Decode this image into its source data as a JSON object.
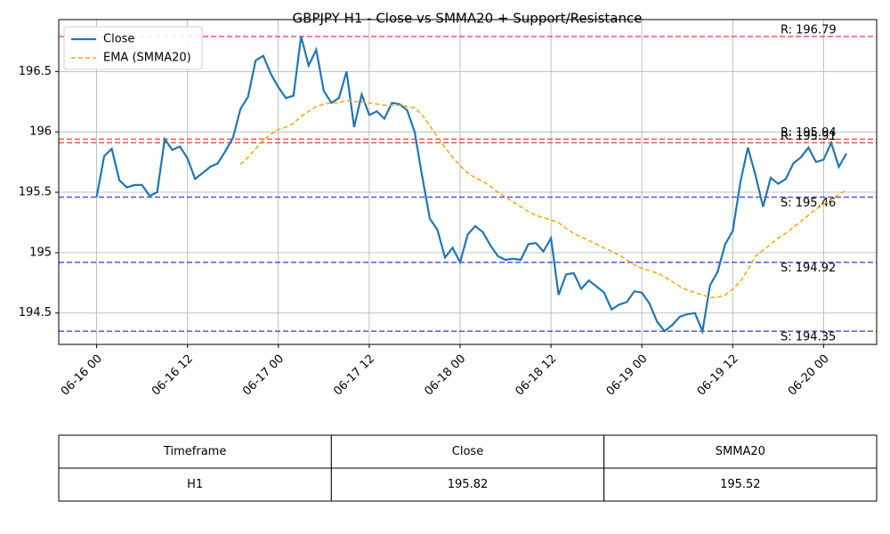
{
  "chart_data": {
    "type": "line",
    "title": "GBPJPY H1 - Close vs SMMA20 + Support/Resistance",
    "x": [
      "06-16 00",
      "06-16 01",
      "06-16 02",
      "06-16 03",
      "06-16 04",
      "06-16 05",
      "06-16 06",
      "06-16 07",
      "06-16 08",
      "06-16 09",
      "06-16 10",
      "06-16 11",
      "06-16 12",
      "06-16 13",
      "06-16 14",
      "06-16 15",
      "06-16 16",
      "06-16 17",
      "06-16 18",
      "06-16 19",
      "06-16 20",
      "06-16 21",
      "06-16 22",
      "06-16 23",
      "06-17 00",
      "06-17 01",
      "06-17 02",
      "06-17 03",
      "06-17 04",
      "06-17 05",
      "06-17 06",
      "06-17 07",
      "06-17 08",
      "06-17 09",
      "06-17 10",
      "06-17 11",
      "06-17 12",
      "06-17 13",
      "06-17 14",
      "06-17 15",
      "06-17 16",
      "06-17 17",
      "06-17 18",
      "06-17 19",
      "06-17 20",
      "06-17 21",
      "06-17 22",
      "06-17 23",
      "06-18 00",
      "06-18 01",
      "06-18 02",
      "06-18 03",
      "06-18 04",
      "06-18 05",
      "06-18 06",
      "06-18 07",
      "06-18 08",
      "06-18 09",
      "06-18 10",
      "06-18 11",
      "06-18 12",
      "06-18 13",
      "06-18 14",
      "06-18 15",
      "06-18 16",
      "06-18 17",
      "06-18 18",
      "06-18 19",
      "06-18 20",
      "06-18 21",
      "06-18 22",
      "06-18 23",
      "06-19 00",
      "06-19 01",
      "06-19 02",
      "06-19 03",
      "06-19 04",
      "06-19 05",
      "06-19 06",
      "06-19 07",
      "06-19 08",
      "06-19 09",
      "06-19 10",
      "06-19 11",
      "06-19 12",
      "06-19 13",
      "06-19 14",
      "06-19 15",
      "06-19 16",
      "06-19 17",
      "06-19 18",
      "06-19 19",
      "06-19 20",
      "06-19 21",
      "06-19 22",
      "06-19 23",
      "06-20 00",
      "06-20 01",
      "06-20 02",
      "06-20 03"
    ],
    "series": [
      {
        "name": "Close",
        "color": "#1f77b4",
        "dash": false,
        "values": [
          195.46,
          195.8,
          195.86,
          195.6,
          195.54,
          195.56,
          195.56,
          195.47,
          195.5,
          195.94,
          195.85,
          195.88,
          195.78,
          195.61,
          195.66,
          195.71,
          195.74,
          195.84,
          195.95,
          196.19,
          196.29,
          196.59,
          196.63,
          196.48,
          196.37,
          196.28,
          196.3,
          196.79,
          196.55,
          196.68,
          196.34,
          196.24,
          196.28,
          196.5,
          196.04,
          196.31,
          196.14,
          196.17,
          196.11,
          196.24,
          196.23,
          196.18,
          196.0,
          195.63,
          195.28,
          195.19,
          194.96,
          195.04,
          194.92,
          195.15,
          195.22,
          195.17,
          195.06,
          194.97,
          194.94,
          194.95,
          194.94,
          195.07,
          195.08,
          195.01,
          195.12,
          194.65,
          194.82,
          194.83,
          194.7,
          194.77,
          194.72,
          194.67,
          194.53,
          194.57,
          194.59,
          194.68,
          194.67,
          194.58,
          194.43,
          194.35,
          194.4,
          194.47,
          194.49,
          194.5,
          194.35,
          194.73,
          194.84,
          195.07,
          195.18,
          195.58,
          195.87,
          195.64,
          195.38,
          195.62,
          195.57,
          195.61,
          195.74,
          195.79,
          195.87,
          195.75,
          195.77,
          195.91,
          195.71,
          195.82
        ]
      },
      {
        "name": "EMA (SMMA20)",
        "color": "#ffa500",
        "dash": true,
        "values": [
          null,
          null,
          null,
          null,
          null,
          null,
          null,
          null,
          null,
          null,
          null,
          null,
          null,
          null,
          null,
          null,
          null,
          null,
          null,
          195.73,
          195.79,
          195.86,
          195.93,
          195.98,
          196.02,
          196.04,
          196.07,
          196.13,
          196.17,
          196.21,
          196.23,
          196.24,
          196.24,
          196.26,
          196.25,
          196.25,
          196.24,
          196.23,
          196.22,
          196.22,
          196.22,
          196.21,
          196.2,
          196.14,
          196.05,
          195.96,
          195.87,
          195.79,
          195.72,
          195.66,
          195.62,
          195.59,
          195.55,
          195.5,
          195.46,
          195.42,
          195.38,
          195.34,
          195.31,
          195.29,
          195.27,
          195.25,
          195.2,
          195.16,
          195.13,
          195.1,
          195.07,
          195.04,
          195.01,
          194.98,
          194.94,
          194.9,
          194.87,
          194.85,
          194.83,
          194.8,
          194.76,
          194.72,
          194.69,
          194.67,
          194.65,
          194.63,
          194.63,
          194.65,
          194.7,
          194.76,
          194.86,
          194.97,
          195.02,
          195.07,
          195.12,
          195.16,
          195.21,
          195.26,
          195.31,
          195.36,
          195.4,
          195.44,
          195.48,
          195.52
        ]
      }
    ],
    "levels": [
      {
        "value": 196.79,
        "label": "R: 196.79",
        "color": "#e8302a"
      },
      {
        "value": 195.94,
        "label": "R: 195.94",
        "color": "#e8302a"
      },
      {
        "value": 195.91,
        "label": "R: 195.91",
        "color": "#e8302a"
      },
      {
        "value": 195.46,
        "label": "S: 195.46",
        "color": "#2a2ae8"
      },
      {
        "value": 194.92,
        "label": "S: 194.92",
        "color": "#2a2ae8"
      },
      {
        "value": 194.35,
        "label": "S: 194.35",
        "color": "#2a2ae8"
      }
    ],
    "xlim": [
      "06-15 19",
      "06-20 07"
    ],
    "xticks": [
      "06-16 00",
      "06-16 12",
      "06-17 00",
      "06-17 12",
      "06-18 00",
      "06-18 12",
      "06-19 00",
      "06-19 12",
      "06-20 00"
    ],
    "ylim": [
      194.24,
      196.93
    ],
    "yticks": [
      194.5,
      195,
      195.5,
      196,
      196.5
    ],
    "grid": true,
    "legend": "upper left"
  },
  "table": {
    "header": [
      "Timeframe",
      "Close",
      "SMMA20"
    ],
    "rows": [
      [
        "H1",
        "195.82",
        "195.52"
      ]
    ]
  }
}
